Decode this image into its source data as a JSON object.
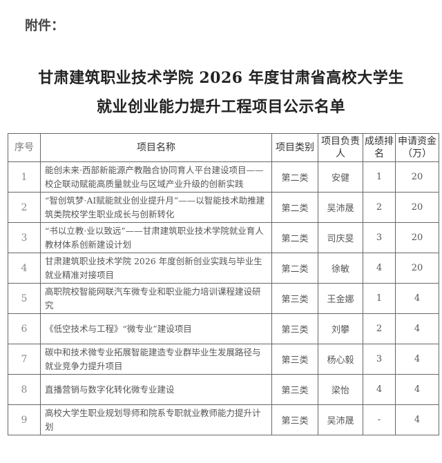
{
  "attachment_label": "附件：",
  "title": {
    "line1": "甘肃建筑职业技术学院 2026 年度甘肃省高校大学生",
    "line2": "就业创业能力提升工程项目公示名单"
  },
  "table": {
    "headers": [
      "序号",
      "项目名称",
      "项目类别",
      "项目负责人",
      "成绩排名",
      "申请资金（万）"
    ],
    "rows": [
      {
        "seq": "1",
        "name": "能创未来·西部新能源产教融合协同育人平台建设项目——校企联动赋能高质量就业与区域产业升级的创新实践",
        "category": "第二类",
        "leader": "安健",
        "rank": "1",
        "funds": "20"
      },
      {
        "seq": "2",
        "name": "“智创筑梦·AI赋能就业创业提升月”——以智能技术助推建筑类院校学生职业成长与创新转化",
        "category": "第二类",
        "leader": "吴沛晟",
        "rank": "2",
        "funds": "20"
      },
      {
        "seq": "3",
        "name": "“书以立教·业以致远”——甘肃建筑职业技术学院就业育人教材体系创新建设计划",
        "category": "第二类",
        "leader": "司庆旻",
        "rank": "3",
        "funds": "20"
      },
      {
        "seq": "4",
        "name": "甘肃建筑职业技术学院 2026 年度创新创业实践与毕业生就业精准对接项目",
        "category": "第二类",
        "leader": "徐敏",
        "rank": "4",
        "funds": "20"
      },
      {
        "seq": "5",
        "name": "高职院校智能网联汽车微专业和职业能力培训课程建设研究",
        "category": "第三类",
        "leader": "王金娜",
        "rank": "1",
        "funds": "4"
      },
      {
        "seq": "6",
        "name": "《低空技术与工程》“微专业”建设项目",
        "category": "第三类",
        "leader": "刘攀",
        "rank": "2",
        "funds": "4"
      },
      {
        "seq": "7",
        "name": "碳中和技术微专业拓展智能建造专业群毕业生发展路径与就业竞争力提升项目",
        "category": "第三类",
        "leader": "杨心毅",
        "rank": "3",
        "funds": "4"
      },
      {
        "seq": "8",
        "name": "直播营销与数字化转化微专业建设",
        "category": "第三类",
        "leader": "梁怡",
        "rank": "4",
        "funds": "4"
      },
      {
        "seq": "9",
        "name": "高校大学生职业规划导师和院系专职就业教师能力提升计划",
        "category": "第三类",
        "leader": "吴沛晟",
        "rank": "-",
        "funds": "4"
      }
    ]
  }
}
